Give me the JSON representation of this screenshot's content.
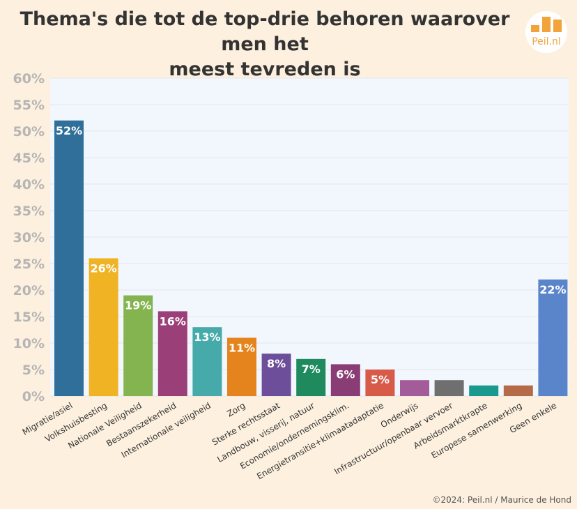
{
  "header": {
    "title_line1": "Thema's die tot de top-drie behoren waarover men het",
    "title_line2": "meest tevreden is",
    "logo_text": "Peil.nl",
    "logo_icon": "bar-chart-logo-icon",
    "logo_color": "#f2a43a"
  },
  "footer": {
    "copyright": "©2024: Peil.nl / Maurice de Hond"
  },
  "chart_data": {
    "type": "bar",
    "title": "Thema's die tot de top-drie behoren waarover men het meest tevreden is",
    "xlabel": "",
    "ylabel": "",
    "ylim": [
      0,
      60
    ],
    "yticks": [
      "0%",
      "5%",
      "10%",
      "15%",
      "20%",
      "25%",
      "30%",
      "35%",
      "40%",
      "45%",
      "50%",
      "55%",
      "60%"
    ],
    "grid": true,
    "legend": "none",
    "categories": [
      "Migratie/asiel",
      "Volkshuisbesting",
      "Nationale Veiligheid",
      "Bestaanszekerheid",
      "Internationale veiligheid",
      "Zorg",
      "Sterke rechtsstaat",
      "Landbouw, visserij, natuur",
      "Economie/ondernemingsklim.",
      "Energietransitie+klimaatadaptatie",
      "Onderwijs",
      "Infrastructuur/openbaar vervoer",
      "Arbeidsmarktkrapte",
      "Europese samenwerking",
      "Geen enkele"
    ],
    "values": [
      52,
      26,
      19,
      16,
      13,
      11,
      8,
      7,
      6,
      5,
      3,
      3,
      2,
      2,
      22
    ],
    "data_labels": [
      "52%",
      "26%",
      "19%",
      "16%",
      "13%",
      "11%",
      "8%",
      "7%",
      "6%",
      "5%",
      "",
      "",
      "",
      "",
      "22%"
    ],
    "colors": [
      "#2f6f9a",
      "#efb324",
      "#84b450",
      "#9b3f78",
      "#45aaa9",
      "#e5841d",
      "#6d4e9a",
      "#1e8a5d",
      "#8a3d74",
      "#d85a48",
      "#a35b9a",
      "#6f6f6f",
      "#1a9a8f",
      "#b56a48",
      "#5b85cb"
    ]
  }
}
